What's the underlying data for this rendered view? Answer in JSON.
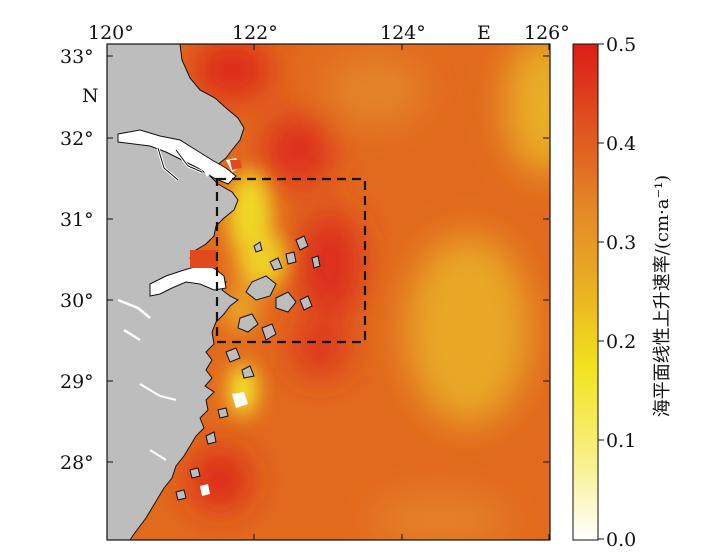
{
  "map": {
    "lon_labels": [
      "120°",
      "122°",
      "124°",
      "126°"
    ],
    "lon_direction": "E",
    "lat_labels": [
      "33°",
      "32°",
      "31°",
      "30°",
      "29°",
      "28°"
    ],
    "lat_direction": "N"
  },
  "colorbar": {
    "title": "海平面线性上升速率/(cm·a⁻¹)",
    "tick_labels": [
      "0.5",
      "0.4",
      "0.3",
      "0.2",
      "0.1",
      "0.0"
    ],
    "stops": [
      "#ffffff",
      "#f7ef7a",
      "#f2e21e",
      "#e9ac22",
      "#e58a26",
      "#e0541e",
      "#dd1c18"
    ]
  },
  "study_box": {
    "style": "dashed"
  },
  "colors": {
    "land": "#bdbdbd",
    "high": "#dd2a1a",
    "mid": "#e2691d",
    "low": "#e8a826",
    "coastal": "#f2df2a"
  }
}
